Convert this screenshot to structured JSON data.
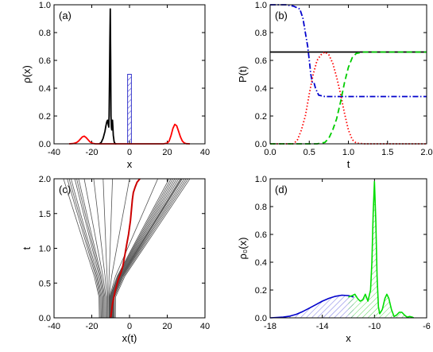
{
  "chart_data": [
    {
      "id": "a",
      "type": "line",
      "panel_label": "(a)",
      "xlabel": "x",
      "ylabel": "ρ(x)",
      "xlim": [
        -40,
        40
      ],
      "ylim": [
        0,
        1.0
      ],
      "xticks": [
        "-40",
        "-20",
        "0",
        "20",
        "40"
      ],
      "yticks": [
        "0.0",
        "0.2",
        "0.4",
        "0.6",
        "0.8",
        "1.0"
      ],
      "series": [
        {
          "color": "#000000",
          "x": [
            -16,
            -15,
            -14,
            -13,
            -12.5,
            -12,
            -11.6,
            -11.3,
            -11,
            -10.8,
            -10.6,
            -10.4,
            -10.2,
            -10,
            -9.8,
            -9.6,
            -9.4,
            -9.2,
            -9.0,
            -8.8,
            -8.6,
            -8.4,
            -8.2,
            -8,
            -7.5,
            -7
          ],
          "y": [
            0,
            0.01,
            0.04,
            0.09,
            0.13,
            0.16,
            0.17,
            0.14,
            0.12,
            0.2,
            0.45,
            0.75,
            0.97,
            0.6,
            0.2,
            0.12,
            0.1,
            0.13,
            0.17,
            0.12,
            0.06,
            0.04,
            0.02,
            0.01,
            0,
            0
          ]
        },
        {
          "color": "#ff0000",
          "x": [
            -32,
            -30,
            -29,
            -28,
            -27,
            -26,
            -25,
            -24,
            -23,
            -22,
            -21,
            -20,
            -19,
            -18,
            -16,
            -10,
            0,
            10,
            18,
            20,
            21,
            22,
            23,
            24,
            25,
            26,
            27,
            28,
            29,
            30,
            32
          ],
          "y": [
            0,
            0.002,
            0.005,
            0.01,
            0.02,
            0.035,
            0.05,
            0.055,
            0.045,
            0.03,
            0.015,
            0.006,
            0.002,
            0,
            0,
            0,
            0,
            0,
            0,
            0.005,
            0.02,
            0.06,
            0.11,
            0.14,
            0.13,
            0.09,
            0.05,
            0.02,
            0.006,
            0.001,
            0
          ]
        }
      ],
      "bar": {
        "x0": -1,
        "x1": 1,
        "height": 0.5,
        "color": "#3333cc",
        "fill": "hatched"
      }
    },
    {
      "id": "b",
      "type": "line",
      "panel_label": "(b)",
      "xlabel": "t",
      "ylabel": "P(t)",
      "xlim": [
        0,
        2.0
      ],
      "ylim": [
        0,
        1.0
      ],
      "xticks": [
        "0.0",
        "0.5",
        "1.0",
        "1.5",
        "2.0"
      ],
      "yticks": [
        "0.0",
        "0.2",
        "0.4",
        "0.6",
        "0.8",
        "1.0"
      ],
      "series": [
        {
          "color": "#000000",
          "style": "solid",
          "x": [
            0,
            2.0
          ],
          "y": [
            0.66,
            0.66
          ]
        },
        {
          "color": "#0000cc",
          "style": "dashdot",
          "x": [
            0,
            0.2,
            0.3,
            0.38,
            0.42,
            0.45,
            0.48,
            0.5,
            0.52,
            0.54,
            0.56,
            0.58,
            0.62,
            0.7,
            0.8,
            1.0,
            1.5,
            2.0
          ],
          "y": [
            1.0,
            1.0,
            0.99,
            0.97,
            0.9,
            0.8,
            0.7,
            0.6,
            0.5,
            0.44,
            0.44,
            0.4,
            0.35,
            0.34,
            0.34,
            0.34,
            0.34,
            0.34
          ]
        },
        {
          "color": "#ff0000",
          "style": "dotted",
          "x": [
            0,
            0.3,
            0.35,
            0.4,
            0.45,
            0.5,
            0.55,
            0.6,
            0.65,
            0.7,
            0.75,
            0.8,
            0.85,
            0.9,
            0.95,
            1.0,
            1.05,
            1.1,
            1.2,
            2.0
          ],
          "y": [
            0,
            0,
            0.03,
            0.1,
            0.2,
            0.36,
            0.5,
            0.6,
            0.64,
            0.66,
            0.64,
            0.58,
            0.48,
            0.36,
            0.22,
            0.1,
            0.03,
            0.005,
            0,
            0
          ]
        },
        {
          "color": "#00cc00",
          "style": "dashed",
          "x": [
            0,
            0.6,
            0.7,
            0.75,
            0.8,
            0.85,
            0.9,
            0.95,
            1.0,
            1.05,
            1.1,
            1.2,
            1.5,
            2.0
          ],
          "y": [
            0,
            0,
            0.01,
            0.04,
            0.1,
            0.18,
            0.3,
            0.44,
            0.55,
            0.62,
            0.65,
            0.66,
            0.66,
            0.66
          ]
        }
      ]
    },
    {
      "id": "c",
      "type": "line",
      "panel_label": "(c)",
      "xlabel": "x(t)",
      "ylabel": "t",
      "xlim": [
        -40,
        40
      ],
      "ylim": [
        0,
        2.0
      ],
      "xticks": [
        "-40",
        "-20",
        "0",
        "20",
        "40"
      ],
      "yticks": [
        "0.0",
        "0.5",
        "1.0",
        "1.5",
        "2.0"
      ],
      "grey_trajectories": {
        "color": "#555555",
        "start_x": [
          -16,
          -15.5,
          -15,
          -14.5,
          -14,
          -13.5,
          -13,
          -12.5,
          -12,
          -11.5,
          -11,
          -10.8,
          -10.6,
          -10.4,
          -10.2,
          -10,
          -9.8,
          -9.6,
          -9.4,
          -9.2,
          -9,
          -8.8,
          -8.6,
          -8.4,
          -8,
          -7.5
        ],
        "end_x": [
          -35,
          -33,
          -32,
          -31,
          -29,
          -28,
          -27,
          -24,
          -19,
          -14,
          -9,
          0,
          15,
          21,
          22,
          23,
          24,
          25,
          26,
          27,
          27.5,
          28,
          29,
          30,
          31,
          32
        ]
      },
      "red_trajectory": {
        "color": "#cc0000",
        "x": [
          -10,
          -9,
          -7.5,
          -6,
          -4.5,
          -3.5,
          -2.5,
          -1.5,
          -0.5,
          0.5,
          1,
          1.5,
          2,
          3,
          4,
          5.5
        ],
        "t": [
          0,
          0.2,
          0.4,
          0.55,
          0.65,
          0.75,
          0.9,
          1.05,
          1.2,
          1.4,
          1.55,
          1.7,
          1.8,
          1.88,
          1.95,
          2.0
        ]
      }
    },
    {
      "id": "d",
      "type": "line",
      "panel_label": "(d)",
      "xlabel": "x",
      "ylabel": "ρ₀(x)",
      "xlim": [
        -18,
        -6
      ],
      "ylim": [
        0,
        1.0
      ],
      "xticks": [
        "-18",
        "-14",
        "-10",
        "-6"
      ],
      "yticks": [
        "0.0",
        "0.2",
        "0.4",
        "0.6",
        "0.8",
        "1.0"
      ],
      "series": [
        {
          "color": "#0000cc",
          "fill": "hatched",
          "x": [
            -18,
            -17,
            -16.5,
            -16,
            -15.5,
            -15,
            -14.5,
            -14,
            -13.5,
            -13,
            -12.5,
            -12,
            -11.8,
            -11.6
          ],
          "y": [
            0,
            0.005,
            0.012,
            0.025,
            0.045,
            0.07,
            0.095,
            0.12,
            0.14,
            0.155,
            0.163,
            0.16,
            0.155,
            0.15
          ]
        },
        {
          "color": "#00dd00",
          "fill": "hatched",
          "x": [
            -12,
            -11.7,
            -11.5,
            -11.3,
            -11.1,
            -10.9,
            -10.7,
            -10.5,
            -10.3,
            -10.2,
            -10.1,
            -10,
            -9.9,
            -9.8,
            -9.7,
            -9.6,
            -9.4,
            -9.2,
            -9.05,
            -8.9,
            -8.7,
            -8.5,
            -8.3,
            -8.1,
            -7.9,
            -7.7,
            -7.5,
            -7.3,
            -7.1,
            -7
          ],
          "y": [
            0.15,
            0.16,
            0.17,
            0.14,
            0.12,
            0.13,
            0.17,
            0.12,
            0.2,
            0.4,
            0.75,
            0.98,
            0.7,
            0.3,
            0.08,
            0.03,
            0.06,
            0.14,
            0.17,
            0.14,
            0.06,
            0.01,
            0.02,
            0.04,
            0.04,
            0.02,
            0.005,
            0.01,
            0.005,
            0
          ]
        }
      ]
    }
  ]
}
